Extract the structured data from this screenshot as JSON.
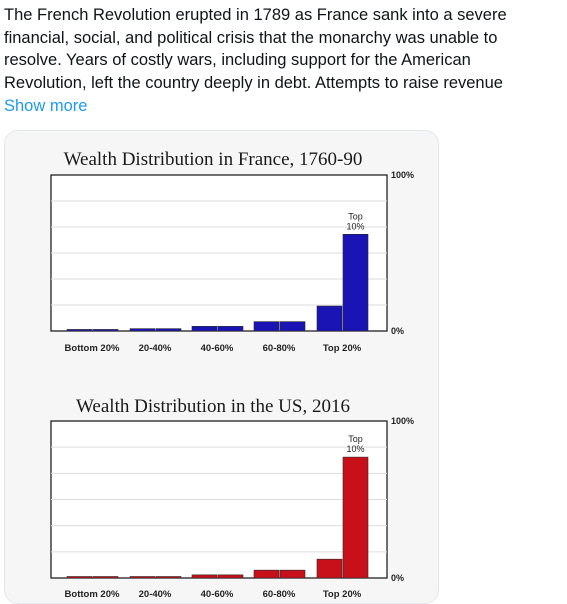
{
  "post": {
    "text_lines": [
      "The French Revolution erupted in 1789 as France sank into a severe",
      "financial, social, and political crisis that the monarchy was unable to",
      "resolve. Years of costly wars, including support for the American",
      "Revolution, left the country deeply in debt. Attempts to raise revenue"
    ],
    "show_more_label": "Show more"
  },
  "chart_data": [
    {
      "type": "bar",
      "title": "Wealth Distribution in France, 1760-90",
      "categories": [
        "Bottom 20%",
        "20-40%",
        "40-60%",
        "60-80%",
        "Top 20%"
      ],
      "bar_groups": [
        {
          "category": "Bottom 20%",
          "values": [
            1,
            1
          ]
        },
        {
          "category": "20-40%",
          "values": [
            1.5,
            1.5
          ]
        },
        {
          "category": "40-60%",
          "values": [
            3,
            3
          ]
        },
        {
          "category": "60-80%",
          "values": [
            6,
            6
          ]
        },
        {
          "category": "Top 20%",
          "values": [
            16,
            62
          ]
        }
      ],
      "annotation": "Top 10%",
      "ylim": [
        0,
        100
      ],
      "y_ticks": [
        "100%",
        "0%"
      ],
      "color": "#1a14b4",
      "grid": true
    },
    {
      "type": "bar",
      "title": "Wealth Distribution in the US, 2016",
      "categories": [
        "Bottom 20%",
        "20-40%",
        "40-60%",
        "60-80%",
        "Top 20%"
      ],
      "bar_groups": [
        {
          "category": "Bottom 20%",
          "values": [
            0.5,
            0.5
          ]
        },
        {
          "category": "20-40%",
          "values": [
            0.8,
            0.8
          ]
        },
        {
          "category": "40-60%",
          "values": [
            2,
            2
          ]
        },
        {
          "category": "60-80%",
          "values": [
            5,
            5
          ]
        },
        {
          "category": "Top 20%",
          "values": [
            12,
            77
          ]
        }
      ],
      "annotation": "Top 10%",
      "ylim": [
        0,
        100
      ],
      "y_ticks": [
        "100%",
        "0%"
      ],
      "color": "#c8101a",
      "grid": true
    }
  ]
}
